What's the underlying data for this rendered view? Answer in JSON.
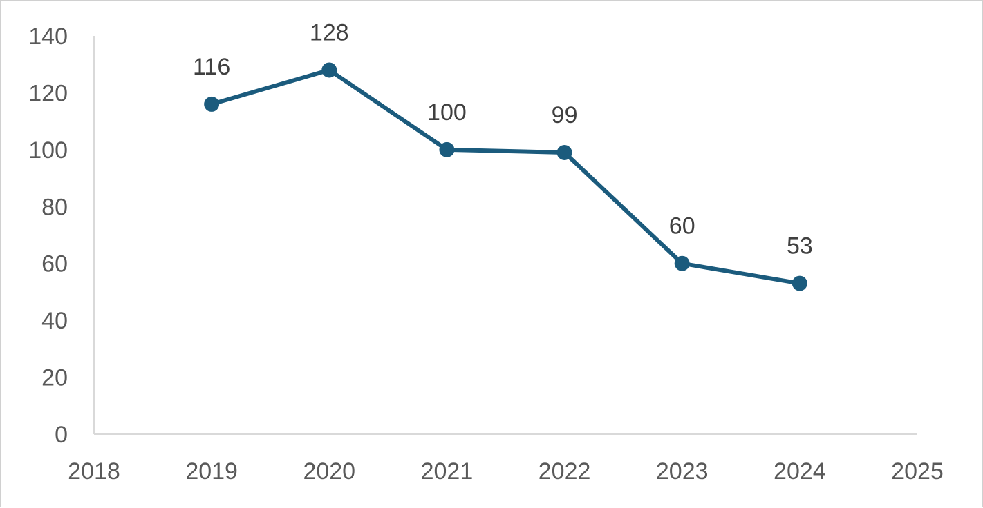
{
  "chart_data": {
    "type": "line",
    "x": [
      2019,
      2020,
      2021,
      2022,
      2023,
      2024
    ],
    "series": [
      {
        "values": [
          116,
          128,
          100,
          99,
          60,
          53
        ]
      }
    ],
    "data_labels": [
      "116",
      "128",
      "100",
      "99",
      "60",
      "53"
    ],
    "x_ticks": [
      "2018",
      "2019",
      "2020",
      "2021",
      "2022",
      "2023",
      "2024",
      "2025"
    ],
    "y_ticks": [
      "0",
      "20",
      "40",
      "60",
      "80",
      "100",
      "120",
      "140"
    ],
    "xlim": [
      2018,
      2025
    ],
    "ylim": [
      0,
      140
    ],
    "grid": false,
    "legend": "none",
    "line_color": "#1b5b7d",
    "axis_color": "#d9d9d9"
  }
}
